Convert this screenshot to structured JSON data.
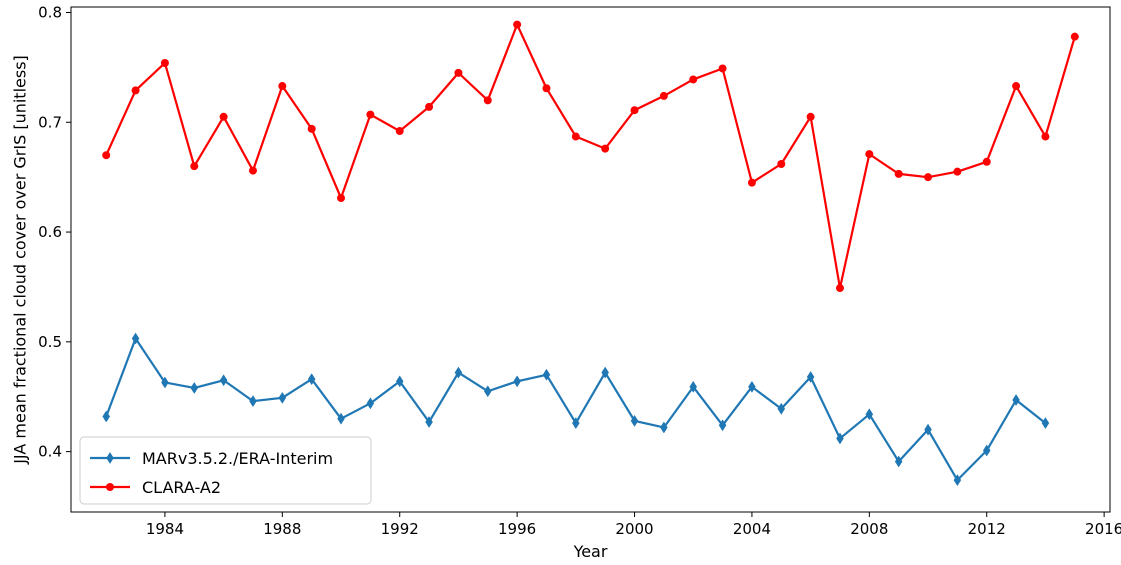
{
  "chart_data": {
    "type": "line",
    "title": "",
    "xlabel": "Year",
    "ylabel": "JJA mean fractional cloud cover over GrIS [unitless]",
    "xlim": [
      1980.8,
      2016.2
    ],
    "ylim": [
      0.345,
      0.805
    ],
    "xticks": [
      1984,
      1988,
      1992,
      1996,
      2000,
      2004,
      2008,
      2012,
      2016
    ],
    "xtick_labels": [
      "1984",
      "1988",
      "1992",
      "1996",
      "2000",
      "2004",
      "2008",
      "2012",
      "2016"
    ],
    "yticks": [
      0.4,
      0.5,
      0.6,
      0.7,
      0.8
    ],
    "ytick_labels": [
      "0.4",
      "0.5",
      "0.6",
      "0.7",
      "0.8"
    ],
    "grid": false,
    "legend_position": "lower-left",
    "series": [
      {
        "name": "MARv3.5.2./ERA-Interim",
        "color": "#1f77b4",
        "marker": "diamond",
        "x": [
          1982,
          1983,
          1984,
          1985,
          1986,
          1987,
          1988,
          1989,
          1990,
          1991,
          1992,
          1993,
          1994,
          1995,
          1996,
          1997,
          1998,
          1999,
          2000,
          2001,
          2002,
          2003,
          2004,
          2005,
          2006,
          2007,
          2008,
          2009,
          2010,
          2011,
          2012,
          2013,
          2014
        ],
        "y": [
          0.432,
          0.503,
          0.463,
          0.458,
          0.465,
          0.446,
          0.449,
          0.466,
          0.43,
          0.444,
          0.464,
          0.427,
          0.472,
          0.455,
          0.464,
          0.47,
          0.426,
          0.472,
          0.428,
          0.422,
          0.459,
          0.424,
          0.459,
          0.439,
          0.468,
          0.412,
          0.434,
          0.391,
          0.42,
          0.374,
          0.401,
          0.447,
          0.426
        ]
      },
      {
        "name": "CLARA-A2",
        "color": "#ff0000",
        "marker": "circle",
        "x": [
          1982,
          1983,
          1984,
          1985,
          1986,
          1987,
          1988,
          1989,
          1990,
          1991,
          1992,
          1993,
          1994,
          1995,
          1996,
          1997,
          1998,
          1999,
          2000,
          2001,
          2002,
          2003,
          2004,
          2005,
          2006,
          2007,
          2008,
          2009,
          2010,
          2011,
          2012,
          2013,
          2014,
          2015
        ],
        "y": [
          0.67,
          0.729,
          0.754,
          0.66,
          0.705,
          0.656,
          0.733,
          0.694,
          0.631,
          0.707,
          0.692,
          0.714,
          0.745,
          0.72,
          0.789,
          0.731,
          0.687,
          0.676,
          0.711,
          0.724,
          0.739,
          0.749,
          0.645,
          0.662,
          0.705,
          0.549,
          0.671,
          0.653,
          0.65,
          0.655,
          0.664,
          0.733,
          0.687,
          0.778
        ]
      }
    ]
  }
}
